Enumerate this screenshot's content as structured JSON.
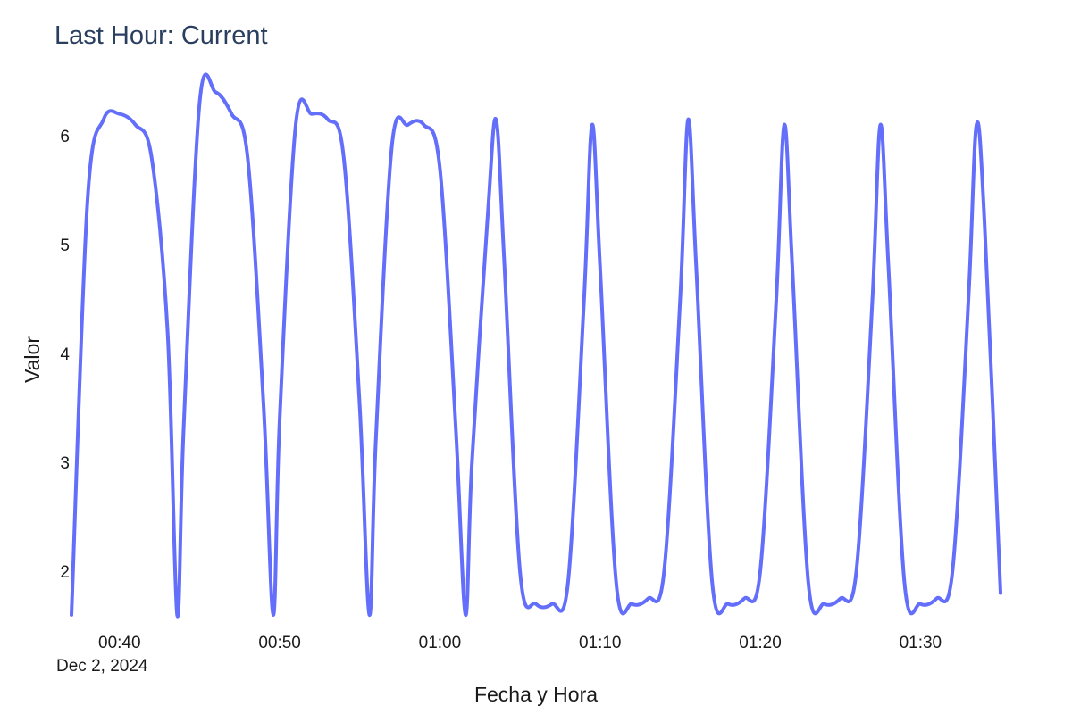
{
  "chart_data": {
    "type": "line",
    "title": "Last Hour: Current",
    "xlabel": "Fecha y Hora",
    "ylabel": "Valor",
    "x_date_label": "Dec 2, 2024",
    "x_tick_labels": [
      "00:40",
      "00:50",
      "01:00",
      "01:10",
      "01:20",
      "01:30"
    ],
    "x_tick_minutes": [
      40,
      50,
      60,
      70,
      80,
      90
    ],
    "y_ticks": [
      2,
      3,
      4,
      5,
      6
    ],
    "xlim": [
      "2024-12-02 00:37",
      "2024-12-02 01:35"
    ],
    "ylim": [
      1.55,
      6.55
    ],
    "grid": false,
    "line_color": "#636efa",
    "series": [
      {
        "x": [
          "00:37",
          "00:38",
          "00:39",
          "00:40",
          "00:41",
          "00:42",
          "00:43",
          "00:43.6",
          "00:44",
          "00:45",
          "00:46",
          "00:47",
          "00:48",
          "00:49",
          "00:49.6",
          "00:50",
          "00:51",
          "00:52",
          "00:53",
          "00:54",
          "00:55",
          "00:55.6",
          "00:56",
          "00:57",
          "00:58",
          "00:59",
          "01:00",
          "01:01",
          "01:01.6",
          "01:02",
          "01:03",
          "01:03.5",
          "01:04",
          "01:05",
          "01:06",
          "01:07",
          "01:08",
          "01:09",
          "01:09.5",
          "01:10",
          "01:11",
          "01:12",
          "01:13",
          "01:14",
          "01:15",
          "01:15.5",
          "01:16",
          "01:17",
          "01:18",
          "01:19",
          "01:20",
          "01:21",
          "01:21.5",
          "01:22",
          "01:23",
          "01:24",
          "01:25",
          "01:26",
          "01:27",
          "01:27.5",
          "01:28",
          "01:29",
          "01:30",
          "01:31",
          "01:32",
          "01:33",
          "01:33.5",
          "01:34",
          "01:35"
        ],
        "values": [
          1.6,
          5.4,
          6.15,
          6.2,
          6.1,
          5.8,
          4.2,
          1.6,
          3.3,
          6.3,
          6.4,
          6.2,
          5.8,
          3.5,
          1.6,
          3.4,
          6.1,
          6.2,
          6.15,
          5.8,
          3.5,
          1.6,
          3.2,
          5.9,
          6.1,
          6.1,
          5.7,
          3.3,
          1.6,
          3.0,
          5.3,
          6.15,
          4.9,
          2.0,
          1.7,
          1.7,
          1.9,
          4.5,
          6.1,
          4.8,
          1.9,
          1.7,
          1.75,
          2.0,
          4.5,
          6.15,
          4.8,
          1.9,
          1.7,
          1.75,
          2.0,
          4.5,
          6.1,
          4.8,
          1.9,
          1.7,
          1.75,
          2.0,
          4.5,
          6.1,
          4.8,
          1.9,
          1.7,
          1.75,
          2.0,
          4.5,
          6.1,
          5.2,
          1.8
        ]
      }
    ]
  }
}
